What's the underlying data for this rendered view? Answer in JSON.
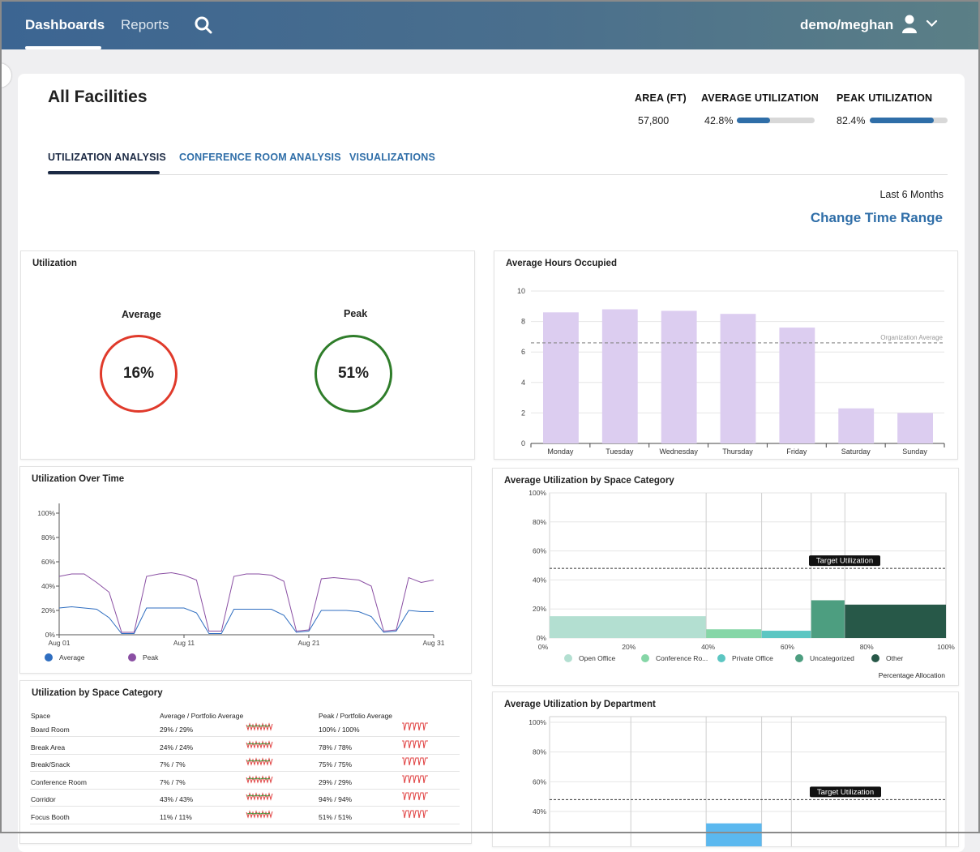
{
  "nav": {
    "items": [
      {
        "label": "Dashboards",
        "active": true
      },
      {
        "label": "Reports",
        "active": false
      }
    ],
    "search_icon": "search-icon",
    "user": "demo/meghan",
    "user_icon": "user-icon",
    "chevron_icon": "chevron-down-icon"
  },
  "header": {
    "title": "All Facilities",
    "stats": {
      "area": {
        "label": "AREA (FT)",
        "value": "57,800"
      },
      "avg": {
        "label": "AVERAGE UTILIZATION",
        "value": "42.8%",
        "fraction": 0.428
      },
      "peak": {
        "label": "PEAK UTILIZATION",
        "value": "82.4%",
        "fraction": 0.824
      }
    }
  },
  "tabs": [
    {
      "label": "UTILIZATION ANALYSIS",
      "active": true
    },
    {
      "label": "CONFERENCE ROOM ANALYSIS",
      "active": false
    },
    {
      "label": "VISUALIZATIONS",
      "active": false
    }
  ],
  "time_range": {
    "label": "Last 6 Months",
    "button": "Change Time Range"
  },
  "utilization_card": {
    "title": "Utilization",
    "average": {
      "label": "Average",
      "value": "16%",
      "color": "#e03a2b"
    },
    "peak": {
      "label": "Peak",
      "value": "51%",
      "color": "#2f7d2a"
    }
  },
  "hours_card": {
    "title": "Average Hours Occupied"
  },
  "over_time_card": {
    "title": "Utilization Over Time"
  },
  "space_cat_card": {
    "title": "Average Utilization by Space Category"
  },
  "dept_card": {
    "title": "Average Utilization by Department"
  },
  "table_card": {
    "title": "Utilization by Space Category",
    "headers": {
      "space": "Space",
      "avg": "Average / Portfolio Average",
      "peak": "Peak / Portfolio Average"
    },
    "rows": [
      {
        "space": "Board Room",
        "avg": "29% / 29%",
        "peak": "100% / 100%"
      },
      {
        "space": "Break Area",
        "avg": "24% / 24%",
        "peak": "78% / 78%"
      },
      {
        "space": "Break/Snack",
        "avg": "7% / 7%",
        "peak": "75% / 75%"
      },
      {
        "space": "Conference Room",
        "avg": "7% / 7%",
        "peak": "29% / 29%"
      },
      {
        "space": "Corridor",
        "avg": "43% / 43%",
        "peak": "94% / 94%"
      },
      {
        "space": "Focus Booth",
        "avg": "11% / 11%",
        "peak": "51% / 51%"
      }
    ]
  },
  "chart_data": [
    {
      "type": "bar",
      "title": "Average Hours Occupied",
      "categories": [
        "Monday",
        "Tuesday",
        "Wednesday",
        "Thursday",
        "Friday",
        "Saturday",
        "Sunday"
      ],
      "values": [
        8.6,
        8.8,
        8.7,
        8.5,
        7.6,
        2.3,
        2.0
      ],
      "ylim": [
        0,
        10
      ],
      "yticks": [
        "0",
        "2",
        "4",
        "6",
        "8",
        "10"
      ],
      "reference": {
        "label": "Organization Average",
        "value": 6.6
      },
      "color": "#dccdf0"
    },
    {
      "type": "line",
      "title": "Utilization Over Time",
      "ylim": [
        0,
        100
      ],
      "yticks": [
        "0%",
        "20%",
        "40%",
        "60%",
        "80%",
        "100%"
      ],
      "xticks": [
        "Aug 01",
        "Aug 11",
        "Aug 21",
        "Aug 31"
      ],
      "x": [
        1,
        2,
        3,
        4,
        5,
        6,
        7,
        8,
        9,
        10,
        11,
        12,
        13,
        14,
        15,
        16,
        17,
        18,
        19,
        20,
        21,
        22,
        23,
        24,
        25,
        26,
        27,
        28,
        29,
        30,
        31
      ],
      "series": [
        {
          "name": "Average",
          "color": "#2f6ec0",
          "values": [
            22,
            23,
            22,
            21,
            14,
            1,
            1,
            22,
            22,
            22,
            22,
            18,
            1,
            1,
            21,
            21,
            21,
            21,
            16,
            2,
            3,
            20,
            20,
            20,
            19,
            15,
            2,
            3,
            20,
            19,
            19
          ]
        },
        {
          "name": "Peak",
          "color": "#8a4fa3",
          "values": [
            48,
            50,
            50,
            43,
            35,
            2,
            2,
            48,
            50,
            51,
            49,
            45,
            3,
            3,
            48,
            50,
            50,
            49,
            44,
            3,
            4,
            46,
            47,
            46,
            45,
            40,
            3,
            4,
            47,
            43,
            45
          ]
        }
      ]
    },
    {
      "type": "bar",
      "title": "Average Utilization by Space Category",
      "yticks": [
        "0%",
        "20%",
        "40%",
        "60%",
        "80%",
        "100%"
      ],
      "xticks": [
        "0%",
        "20%",
        "40%",
        "60%",
        "80%",
        "100%"
      ],
      "xlabel": "Percentage Allocation",
      "target": {
        "label": "Target Utilization",
        "value": 48
      },
      "segments": [
        {
          "name": "Open Office",
          "start": 0,
          "end": 39.5,
          "value": 15,
          "color": "#b3dfd1"
        },
        {
          "name": "Conference Ro...",
          "start": 39.5,
          "end": 53.5,
          "value": 6,
          "color": "#86d6a7"
        },
        {
          "name": "Private Office",
          "start": 53.5,
          "end": 66,
          "value": 5,
          "color": "#5cc6c2"
        },
        {
          "name": "Uncategorized",
          "start": 66,
          "end": 74.5,
          "value": 26,
          "color": "#4d9e80"
        },
        {
          "name": "Other",
          "start": 74.5,
          "end": 100,
          "value": 23,
          "color": "#275848"
        }
      ]
    },
    {
      "type": "bar",
      "title": "Average Utilization by Department",
      "yticks": [
        "40%",
        "60%",
        "80%",
        "100%"
      ],
      "target": {
        "label": "Target Utilization",
        "value": 48
      },
      "dividers": [
        20.5,
        39.5,
        53.5,
        61
      ],
      "segments": [
        {
          "start": 39.5,
          "end": 53.5,
          "value": 32,
          "color": "#5bb8ef"
        }
      ]
    }
  ]
}
